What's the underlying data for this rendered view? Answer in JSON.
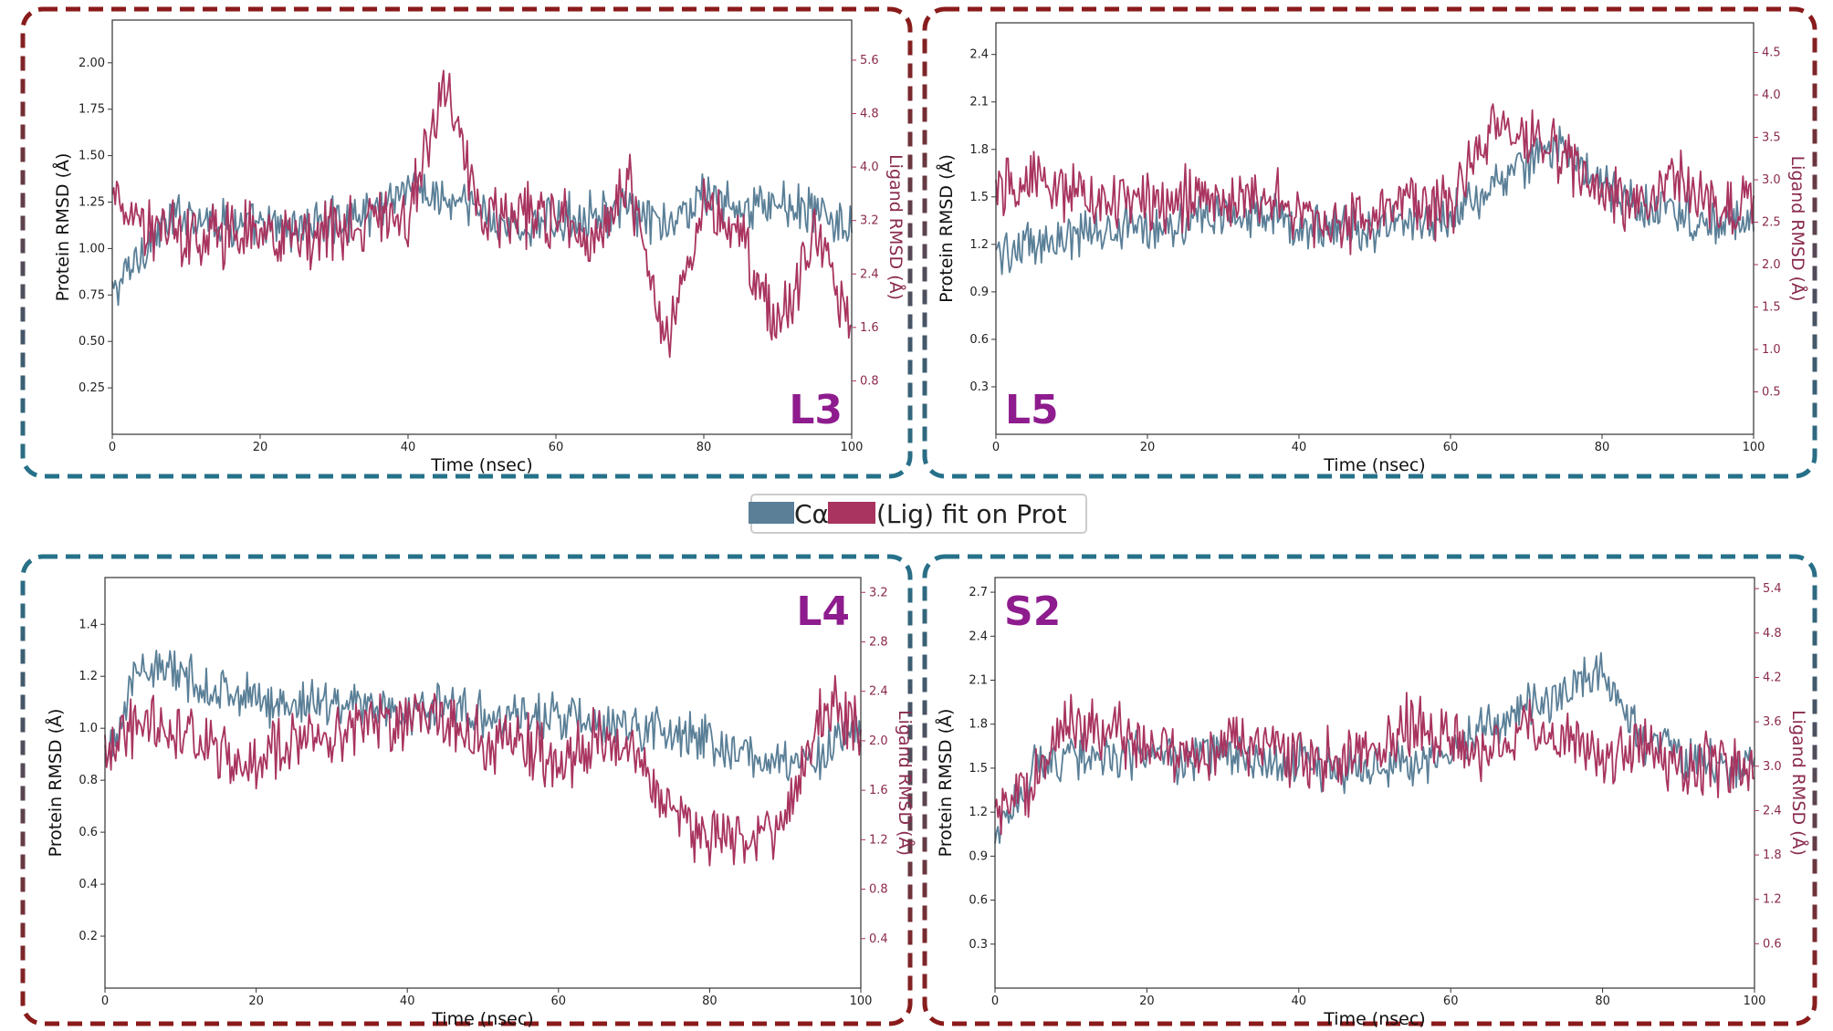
{
  "colors": {
    "protein": "#5a7f97",
    "ligand": "#a8345f",
    "frame_red": "#8b1a1a",
    "frame_teal": "#26718a",
    "panel_label": "#8e1c8e"
  },
  "legend": {
    "protein_label": "Cα",
    "ligand_label": "(Lig) fit on Prot"
  },
  "chart_data": [
    {
      "type": "line",
      "panel_label": "L3",
      "xlabel": "Time (nsec)",
      "ylabel_left": "Protein RMSD (Å)",
      "ylabel_right": "Ligand RMSD (Å)",
      "xlim": [
        0,
        100
      ],
      "ylim_left": [
        0,
        2.23
      ],
      "ylim_right": [
        0,
        6.2
      ],
      "x_ticks": [
        "0",
        "20",
        "40",
        "60",
        "80",
        "100"
      ],
      "y_ticks_left": [
        "0.25",
        "0.50",
        "0.75",
        "1.00",
        "1.25",
        "1.50",
        "1.75",
        "2.00"
      ],
      "y_ticks_right": [
        "0.8",
        "1.6",
        "2.4",
        "3.2",
        "4.0",
        "4.8",
        "5.6"
      ],
      "series": [
        {
          "name": "Cα",
          "axis": "left",
          "x_step": 5,
          "values": [
            0.75,
            1.05,
            1.2,
            1.15,
            1.1,
            1.12,
            1.15,
            1.2,
            1.35,
            1.25,
            1.2,
            1.1,
            1.15,
            1.2,
            1.2,
            1.1,
            1.3,
            1.2,
            1.25,
            1.2,
            1.1
          ]
        },
        {
          "name": "(Lig) fit on Prot",
          "axis": "right",
          "x_step": 5,
          "values": [
            3.6,
            3.1,
            3.0,
            3.0,
            3.0,
            2.9,
            3.1,
            3.1,
            3.3,
            5.3,
            3.2,
            3.3,
            3.3,
            3.0,
            3.7,
            1.4,
            3.4,
            2.9,
            1.6,
            3.0,
            1.7
          ]
        }
      ]
    },
    {
      "type": "line",
      "panel_label": "L5",
      "xlabel": "Time (nsec)",
      "ylabel_left": "Protein RMSD (Å)",
      "ylabel_right": "Ligand RMSD (Å)",
      "xlim": [
        0,
        100
      ],
      "ylim_left": [
        0,
        2.6
      ],
      "ylim_right": [
        0,
        4.85
      ],
      "x_ticks": [
        "0",
        "20",
        "40",
        "60",
        "80",
        "100"
      ],
      "y_ticks_left": [
        "0.3",
        "0.6",
        "0.9",
        "1.2",
        "1.5",
        "1.8",
        "2.1",
        "2.4"
      ],
      "y_ticks_right": [
        "0.5",
        "1.0",
        "1.5",
        "2.0",
        "2.5",
        "3.0",
        "3.5",
        "4.0",
        "4.5"
      ],
      "series": [
        {
          "name": "Cα",
          "axis": "left",
          "x_step": 5,
          "values": [
            1.15,
            1.2,
            1.25,
            1.3,
            1.32,
            1.35,
            1.38,
            1.38,
            1.32,
            1.3,
            1.3,
            1.35,
            1.38,
            1.55,
            1.7,
            1.85,
            1.55,
            1.45,
            1.4,
            1.3,
            1.35
          ]
        },
        {
          "name": "(Lig) fit on Prot",
          "axis": "right",
          "x_step": 5,
          "values": [
            2.9,
            3.0,
            2.9,
            2.75,
            2.75,
            2.8,
            2.75,
            2.8,
            2.6,
            2.5,
            2.6,
            2.7,
            2.7,
            3.6,
            3.5,
            3.3,
            2.8,
            2.8,
            3.0,
            2.7,
            2.7
          ]
        }
      ]
    },
    {
      "type": "line",
      "panel_label": "L4",
      "xlabel": "Time (nsec)",
      "ylabel_left": "Protein RMSD (Å)",
      "ylabel_right": "Ligand RMSD (Å)",
      "xlim": [
        0,
        100
      ],
      "ylim_left": [
        0,
        1.58
      ],
      "ylim_right": [
        0,
        3.32
      ],
      "x_ticks": [
        "0",
        "20",
        "40",
        "60",
        "80",
        "100"
      ],
      "y_ticks_left": [
        "0.2",
        "0.4",
        "0.6",
        "0.8",
        "1.0",
        "1.2",
        "1.4"
      ],
      "y_ticks_right": [
        "0.4",
        "0.8",
        "1.2",
        "1.6",
        "2.0",
        "2.4",
        "2.8",
        "3.2"
      ],
      "series": [
        {
          "name": "Cα",
          "axis": "left",
          "x_step": 5,
          "values": [
            0.9,
            1.25,
            1.2,
            1.15,
            1.1,
            1.1,
            1.1,
            1.1,
            1.05,
            1.1,
            1.05,
            1.05,
            1.05,
            1.0,
            1.0,
            1.0,
            0.95,
            0.9,
            0.85,
            0.9,
            1.0
          ]
        },
        {
          "name": "(Lig) fit on Prot",
          "axis": "right",
          "x_step": 5,
          "values": [
            1.9,
            2.2,
            2.1,
            1.9,
            1.8,
            2.0,
            2.0,
            2.1,
            2.2,
            2.2,
            2.0,
            2.0,
            1.8,
            2.0,
            1.9,
            1.4,
            1.2,
            1.2,
            1.3,
            2.3,
            2.1
          ]
        }
      ]
    },
    {
      "type": "line",
      "panel_label": "S2",
      "xlabel": "Time (nsec)",
      "ylabel_left": "Protein RMSD (Å)",
      "ylabel_right": "Ligand RMSD (Å)",
      "xlim": [
        0,
        100
      ],
      "ylim_left": [
        0,
        2.8
      ],
      "ylim_right": [
        0,
        5.55
      ],
      "x_ticks": [
        "0",
        "20",
        "40",
        "60",
        "80",
        "100"
      ],
      "y_ticks_left": [
        "0.3",
        "0.6",
        "0.9",
        "1.2",
        "1.5",
        "1.8",
        "2.1",
        "2.4",
        "2.7"
      ],
      "y_ticks_right": [
        "0.6",
        "1.2",
        "1.8",
        "2.4",
        "3.0",
        "3.6",
        "4.2",
        "4.8",
        "5.4"
      ],
      "series": [
        {
          "name": "Cα",
          "axis": "left",
          "x_step": 5,
          "values": [
            1.0,
            1.5,
            1.6,
            1.55,
            1.6,
            1.55,
            1.6,
            1.5,
            1.55,
            1.5,
            1.5,
            1.55,
            1.6,
            1.8,
            1.9,
            2.0,
            2.2,
            1.7,
            1.6,
            1.55,
            1.5
          ]
        },
        {
          "name": "(Lig) fit on Prot",
          "axis": "right",
          "x_step": 5,
          "values": [
            2.4,
            2.8,
            3.6,
            3.5,
            3.3,
            3.2,
            3.2,
            3.3,
            3.1,
            3.1,
            3.3,
            3.6,
            3.3,
            3.2,
            3.5,
            3.4,
            3.1,
            3.2,
            3.0,
            3.0,
            3.0
          ]
        }
      ]
    }
  ]
}
